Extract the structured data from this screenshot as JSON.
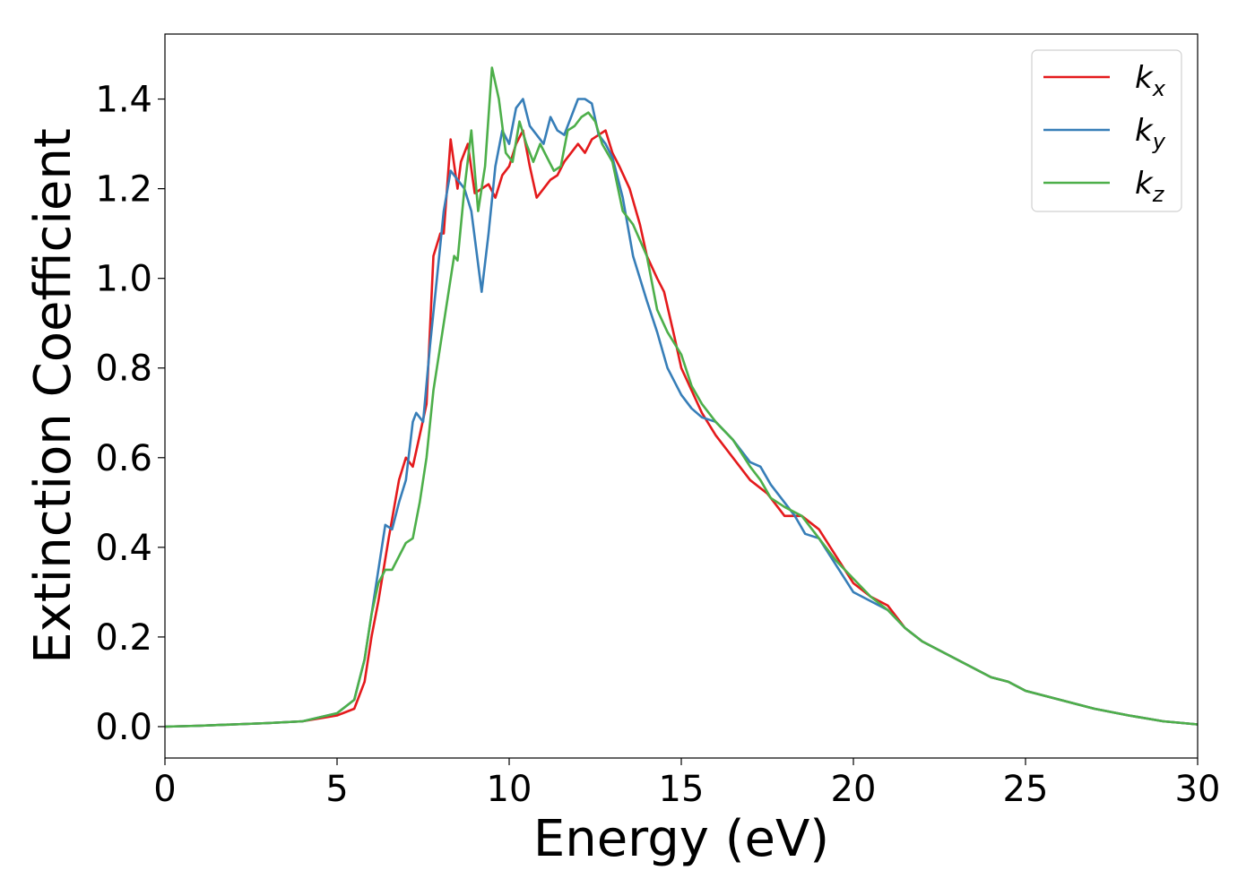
{
  "chart_data": {
    "type": "line",
    "title": "",
    "xlabel": "Energy (eV)",
    "ylabel": "Extinction Coefficient",
    "xlim": [
      0,
      30
    ],
    "ylim": [
      -0.07,
      1.545
    ],
    "xticks": [
      0,
      5,
      10,
      15,
      20,
      25,
      30
    ],
    "yticks": [
      0.0,
      0.2,
      0.4,
      0.6,
      0.8,
      1.0,
      1.2,
      1.4
    ],
    "grid": false,
    "legend": {
      "position": "top-right"
    },
    "series": [
      {
        "name": "k",
        "subscript": "x",
        "color": "#e41a1c",
        "x": [
          0,
          1,
          2,
          3,
          4,
          5,
          5.5,
          5.8,
          6.0,
          6.2,
          6.5,
          6.8,
          7.0,
          7.2,
          7.4,
          7.6,
          7.8,
          8.0,
          8.1,
          8.3,
          8.5,
          8.6,
          8.8,
          9.0,
          9.2,
          9.4,
          9.6,
          9.8,
          10.0,
          10.2,
          10.4,
          10.6,
          10.8,
          11.0,
          11.2,
          11.4,
          11.6,
          11.8,
          12.0,
          12.2,
          12.4,
          12.6,
          12.8,
          13.0,
          13.2,
          13.5,
          13.8,
          14.0,
          14.3,
          14.5,
          14.8,
          15.0,
          15.3,
          15.6,
          16.0,
          16.5,
          17.0,
          17.5,
          18.0,
          18.5,
          19.0,
          19.5,
          20.0,
          20.5,
          21.0,
          21.5,
          22.0,
          22.5,
          23.0,
          23.5,
          24.0,
          24.5,
          25.0,
          26.0,
          27.0,
          28.0,
          29.0,
          30.0
        ],
        "y": [
          0.0,
          0.002,
          0.005,
          0.008,
          0.012,
          0.025,
          0.04,
          0.1,
          0.2,
          0.28,
          0.42,
          0.55,
          0.6,
          0.58,
          0.65,
          0.72,
          1.05,
          1.1,
          1.1,
          1.31,
          1.2,
          1.26,
          1.3,
          1.19,
          1.2,
          1.21,
          1.18,
          1.23,
          1.25,
          1.3,
          1.33,
          1.25,
          1.18,
          1.2,
          1.22,
          1.23,
          1.26,
          1.28,
          1.3,
          1.28,
          1.31,
          1.32,
          1.33,
          1.28,
          1.25,
          1.2,
          1.12,
          1.05,
          1.0,
          0.97,
          0.87,
          0.8,
          0.75,
          0.7,
          0.65,
          0.6,
          0.55,
          0.52,
          0.47,
          0.47,
          0.44,
          0.38,
          0.32,
          0.29,
          0.27,
          0.22,
          0.19,
          0.17,
          0.15,
          0.13,
          0.11,
          0.1,
          0.08,
          0.06,
          0.04,
          0.025,
          0.012,
          0.005
        ]
      },
      {
        "name": "k",
        "subscript": "y",
        "color": "#377eb8",
        "x": [
          0,
          1,
          2,
          3,
          4,
          5,
          5.5,
          5.8,
          6.0,
          6.2,
          6.4,
          6.6,
          6.8,
          7.0,
          7.2,
          7.3,
          7.5,
          7.7,
          7.9,
          8.1,
          8.3,
          8.5,
          8.7,
          8.9,
          9.2,
          9.4,
          9.6,
          9.8,
          10.0,
          10.2,
          10.4,
          10.6,
          10.8,
          11.0,
          11.2,
          11.4,
          11.6,
          11.8,
          12.0,
          12.2,
          12.4,
          12.6,
          12.8,
          13.0,
          13.3,
          13.6,
          14.0,
          14.3,
          14.6,
          15.0,
          15.3,
          15.6,
          16.0,
          16.5,
          17.0,
          17.3,
          17.6,
          18.0,
          18.3,
          18.6,
          19.0,
          19.5,
          20.0,
          20.5,
          21.0,
          21.5,
          22.0,
          22.5,
          23.0,
          23.5,
          24.0,
          24.5,
          25.0,
          26.0,
          27.0,
          28.0,
          29.0,
          30.0
        ],
        "y": [
          0.0,
          0.002,
          0.005,
          0.008,
          0.012,
          0.03,
          0.06,
          0.15,
          0.25,
          0.35,
          0.45,
          0.44,
          0.5,
          0.55,
          0.68,
          0.7,
          0.68,
          0.85,
          1.0,
          1.15,
          1.24,
          1.22,
          1.2,
          1.15,
          0.97,
          1.1,
          1.25,
          1.33,
          1.3,
          1.38,
          1.4,
          1.34,
          1.32,
          1.3,
          1.36,
          1.33,
          1.32,
          1.36,
          1.4,
          1.4,
          1.39,
          1.32,
          1.3,
          1.27,
          1.18,
          1.05,
          0.95,
          0.88,
          0.8,
          0.74,
          0.71,
          0.69,
          0.68,
          0.64,
          0.59,
          0.58,
          0.54,
          0.5,
          0.47,
          0.43,
          0.42,
          0.36,
          0.3,
          0.28,
          0.26,
          0.22,
          0.19,
          0.17,
          0.15,
          0.13,
          0.11,
          0.1,
          0.08,
          0.06,
          0.04,
          0.025,
          0.012,
          0.005
        ]
      },
      {
        "name": "k",
        "subscript": "z",
        "color": "#4daf4a",
        "x": [
          0,
          1,
          2,
          3,
          4,
          5,
          5.5,
          5.8,
          6.0,
          6.2,
          6.4,
          6.6,
          6.8,
          7.0,
          7.2,
          7.4,
          7.6,
          7.8,
          8.0,
          8.2,
          8.4,
          8.5,
          8.7,
          8.9,
          9.1,
          9.3,
          9.5,
          9.7,
          9.9,
          10.1,
          10.3,
          10.5,
          10.7,
          10.9,
          11.1,
          11.3,
          11.5,
          11.7,
          11.9,
          12.1,
          12.3,
          12.5,
          12.7,
          13.0,
          13.3,
          13.6,
          14.0,
          14.3,
          14.6,
          15.0,
          15.3,
          15.6,
          16.0,
          16.5,
          17.0,
          17.3,
          17.6,
          18.0,
          18.5,
          19.0,
          19.5,
          20.0,
          20.5,
          21.0,
          21.5,
          22.0,
          22.5,
          23.0,
          23.5,
          24.0,
          24.5,
          25.0,
          26.0,
          27.0,
          28.0,
          29.0,
          30.0
        ],
        "y": [
          0.0,
          0.002,
          0.005,
          0.008,
          0.012,
          0.03,
          0.06,
          0.15,
          0.25,
          0.32,
          0.35,
          0.35,
          0.38,
          0.41,
          0.42,
          0.5,
          0.6,
          0.75,
          0.85,
          0.95,
          1.05,
          1.04,
          1.2,
          1.33,
          1.15,
          1.25,
          1.47,
          1.4,
          1.28,
          1.26,
          1.35,
          1.3,
          1.26,
          1.3,
          1.27,
          1.24,
          1.25,
          1.33,
          1.34,
          1.36,
          1.37,
          1.35,
          1.3,
          1.26,
          1.15,
          1.12,
          1.05,
          0.93,
          0.88,
          0.83,
          0.76,
          0.72,
          0.68,
          0.64,
          0.58,
          0.55,
          0.51,
          0.49,
          0.47,
          0.42,
          0.37,
          0.33,
          0.29,
          0.26,
          0.22,
          0.19,
          0.17,
          0.15,
          0.13,
          0.11,
          0.1,
          0.08,
          0.06,
          0.04,
          0.025,
          0.012,
          0.005
        ]
      }
    ]
  }
}
